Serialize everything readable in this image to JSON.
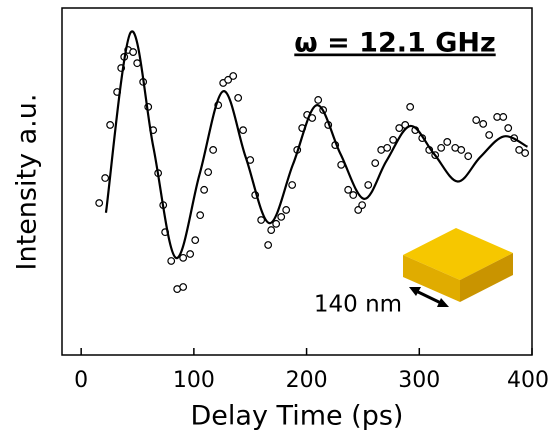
{
  "chart_data": {
    "type": "scatter",
    "title": "ω = 12.1 GHz",
    "annotation": "140 nm",
    "xlabel": "Delay Time (ps)",
    "ylabel": "Intensity a.u.",
    "xlim": [
      -17,
      400
    ],
    "xticks": [
      0,
      100,
      200,
      300,
      400
    ],
    "ylim": [
      0,
      100
    ],
    "series": [
      {
        "mode": "markers",
        "color": "#000000",
        "x": [
          16,
          21.3,
          25.7,
          31.9,
          35.5,
          38.2,
          41.7,
          46.1,
          49.7,
          55,
          59.5,
          63.9,
          68.3,
          72.8,
          74.5,
          79.9,
          85.2,
          90.5,
          90.5,
          96.7,
          101.2,
          105.6,
          109.1,
          112.7,
          117.1,
          121.6,
          126,
          130.4,
          134.9,
          139.3,
          143.7,
          150,
          154.4,
          159.7,
          165.9,
          168.6,
          173,
          177.5,
          181.9,
          187.2,
          191.7,
          196.1,
          200.5,
          205,
          210.3,
          214.7,
          219.2,
          225.4,
          230.7,
          236.9,
          241.4,
          245.8,
          249.3,
          254.7,
          260.9,
          266.2,
          271.5,
          276.8,
          282.2,
          287.5,
          291.9,
          296.4,
          302.6,
          308.8,
          314.1,
          319.4,
          324.8,
          331.9,
          337.2,
          343.4,
          350.5,
          356.7,
          362,
          369.1,
          374.5,
          378.9,
          384.2,
          388.6,
          393.9
        ],
        "values": [
          43.8,
          51,
          66.3,
          75.8,
          82.7,
          85.9,
          87.9,
          87.3,
          84.1,
          78.7,
          71.5,
          64.8,
          52.4,
          43.2,
          35.4,
          27.1,
          19,
          19.6,
          28,
          29.1,
          33.1,
          40.3,
          47.6,
          52.7,
          59.1,
          72,
          78.4,
          79.3,
          80.4,
          74.1,
          64.8,
          56.2,
          46.1,
          38.9,
          31.7,
          36,
          37.8,
          39.8,
          41.8,
          49,
          59.1,
          65.4,
          69.2,
          68.3,
          73.5,
          70.6,
          66.3,
          60.5,
          54.8,
          47.6,
          46.1,
          41.8,
          43.2,
          49,
          55.3,
          59.1,
          59.7,
          62,
          65.4,
          66.3,
          71.5,
          64.8,
          62.5,
          59.1,
          57.6,
          59.7,
          61.4,
          59.7,
          59.1,
          57.3,
          67.7,
          66.6,
          63.4,
          68.6,
          68.6,
          65.4,
          62.5,
          59.1,
          58.2
        ]
      },
      {
        "mode": "line",
        "color": "#000000",
        "x": [
          22,
          44,
          64,
          84,
          105,
          126,
          146,
          167,
          188,
          209,
          230,
          251,
          271,
          292,
          313,
          334,
          354,
          375,
          396
        ],
        "values": [
          41,
          93,
          60,
          28,
          52,
          76,
          57,
          38,
          55,
          72,
          58,
          45,
          56,
          66,
          58,
          50,
          57,
          63,
          60
        ]
      }
    ]
  }
}
